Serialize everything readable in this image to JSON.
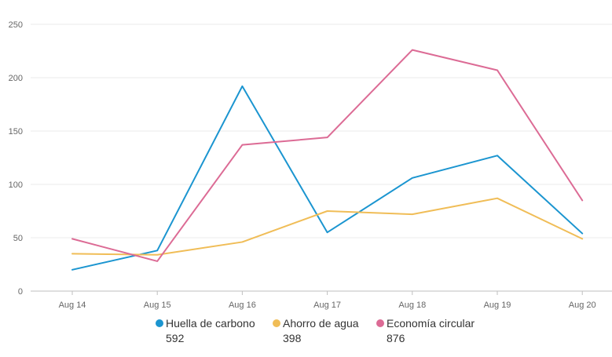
{
  "chart_data": {
    "type": "line",
    "categories": [
      "Aug 14",
      "Aug 15",
      "Aug 16",
      "Aug 17",
      "Aug 18",
      "Aug 19",
      "Aug 20"
    ],
    "ylim": [
      0,
      250
    ],
    "yticks": [
      0,
      50,
      100,
      150,
      200,
      250
    ],
    "grid": true,
    "legend_position": "bottom",
    "series": [
      {
        "name": "Huella de carbono",
        "total": "592",
        "color": "#1b95d0",
        "values": [
          20,
          38,
          192,
          55,
          106,
          127,
          54
        ]
      },
      {
        "name": "Ahorro de agua",
        "total": "398",
        "color": "#f0bd57",
        "values": [
          35,
          34,
          46,
          75,
          72,
          87,
          49
        ]
      },
      {
        "name": "Economía circular",
        "total": "876",
        "color": "#dc6b95",
        "values": [
          49,
          28,
          137,
          144,
          226,
          207,
          85
        ]
      }
    ]
  }
}
